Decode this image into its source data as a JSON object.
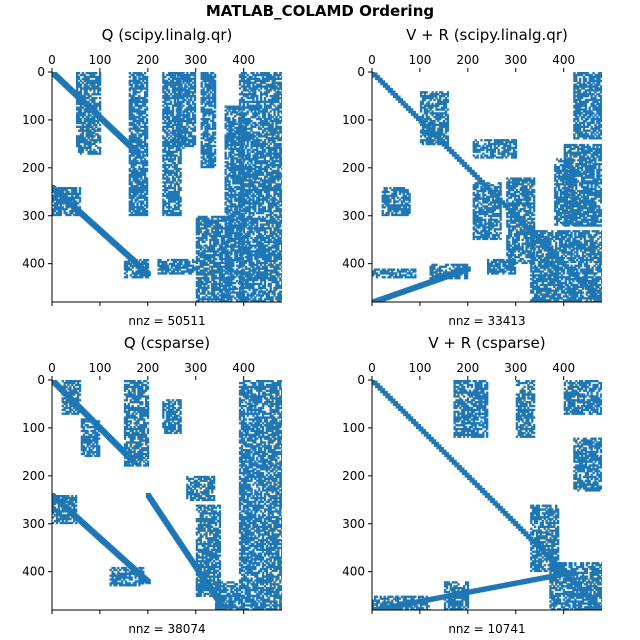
{
  "figure": {
    "title": "MATLAB_COLAMD Ordering"
  },
  "colors": {
    "marker": "#1f77b4",
    "background": "#ffffff",
    "axes": "#000000"
  },
  "chart_data": [
    {
      "type": "heatmap",
      "subtype": "sparsity-pattern",
      "title": "Q (scipy.linalg.qr)",
      "xlabel": "nnz = 50511",
      "nnz": 50511,
      "xaxis_position": "top",
      "x_ticks": [
        0,
        100,
        200,
        300,
        400
      ],
      "y_ticks": [
        0,
        100,
        200,
        300,
        400
      ],
      "xlim": [
        0,
        480
      ],
      "ylim": [
        480,
        0
      ],
      "blocks": [
        [
          0,
          0,
          480,
          480
        ],
        [
          50,
          0,
          100,
          170
        ],
        [
          160,
          0,
          200,
          300
        ],
        [
          230,
          0,
          270,
          300
        ],
        [
          260,
          0,
          300,
          160
        ],
        [
          310,
          0,
          340,
          200
        ],
        [
          390,
          0,
          480,
          480
        ],
        [
          360,
          70,
          400,
          480
        ],
        [
          150,
          390,
          200,
          430
        ],
        [
          220,
          390,
          300,
          420
        ],
        [
          0,
          240,
          60,
          300
        ],
        [
          300,
          300,
          370,
          480
        ]
      ],
      "diagonal": [
        [
          0,
          0,
          180,
          170
        ],
        [
          0,
          240,
          200,
          420
        ]
      ]
    },
    {
      "type": "heatmap",
      "subtype": "sparsity-pattern",
      "title": "V + R (scipy.linalg.qr)",
      "xlabel": "nnz = 33413",
      "nnz": 33413,
      "xaxis_position": "top",
      "x_ticks": [
        0,
        100,
        200,
        300,
        400
      ],
      "y_ticks": [
        0,
        100,
        200,
        300,
        400
      ],
      "xlim": [
        0,
        480
      ],
      "ylim": [
        480,
        0
      ],
      "blocks": [
        [
          0,
          0,
          480,
          480
        ],
        [
          20,
          240,
          80,
          300
        ],
        [
          210,
          230,
          270,
          350
        ],
        [
          280,
          220,
          340,
          400
        ],
        [
          330,
          330,
          480,
          480
        ],
        [
          400,
          150,
          480,
          320
        ],
        [
          420,
          0,
          480,
          140
        ],
        [
          0,
          410,
          90,
          430
        ],
        [
          120,
          400,
          200,
          430
        ],
        [
          240,
          390,
          300,
          420
        ],
        [
          100,
          40,
          160,
          150
        ],
        [
          210,
          140,
          300,
          180
        ],
        [
          380,
          180,
          420,
          320
        ]
      ],
      "diagonal": [
        [
          0,
          0,
          480,
          480
        ],
        [
          0,
          480,
          200,
          410
        ]
      ]
    },
    {
      "type": "heatmap",
      "subtype": "sparsity-pattern",
      "title": "Q (csparse)",
      "xlabel": "nnz = 38074",
      "nnz": 38074,
      "xaxis_position": "top",
      "x_ticks": [
        0,
        100,
        200,
        300,
        400
      ],
      "y_ticks": [
        0,
        100,
        200,
        300,
        400
      ],
      "xlim": [
        0,
        480
      ],
      "ylim": [
        480,
        0
      ],
      "blocks": [
        [
          0,
          0,
          480,
          480
        ],
        [
          390,
          0,
          480,
          480
        ],
        [
          20,
          0,
          60,
          70
        ],
        [
          150,
          0,
          200,
          180
        ],
        [
          230,
          40,
          270,
          110
        ],
        [
          280,
          200,
          340,
          250
        ],
        [
          300,
          260,
          350,
          450
        ],
        [
          120,
          390,
          190,
          430
        ],
        [
          0,
          240,
          50,
          300
        ],
        [
          60,
          80,
          100,
          160
        ],
        [
          340,
          420,
          390,
          480
        ]
      ],
      "diagonal": [
        [
          0,
          0,
          170,
          170
        ],
        [
          0,
          240,
          200,
          420
        ],
        [
          200,
          240,
          360,
          480
        ]
      ]
    },
    {
      "type": "heatmap",
      "subtype": "sparsity-pattern",
      "title": "V + R (csparse)",
      "xlabel": "nnz = 10741",
      "nnz": 10741,
      "xaxis_position": "top",
      "x_ticks": [
        0,
        100,
        200,
        300,
        400
      ],
      "y_ticks": [
        0,
        100,
        200,
        300,
        400
      ],
      "xlim": [
        0,
        480
      ],
      "ylim": [
        480,
        0
      ],
      "blocks": [
        [
          0,
          0,
          480,
          480
        ],
        [
          400,
          0,
          480,
          70
        ],
        [
          420,
          120,
          480,
          230
        ],
        [
          370,
          380,
          480,
          480
        ],
        [
          330,
          260,
          390,
          400
        ],
        [
          170,
          0,
          240,
          120
        ],
        [
          300,
          0,
          340,
          120
        ],
        [
          0,
          450,
          120,
          480
        ],
        [
          150,
          420,
          200,
          480
        ]
      ],
      "diagonal": [
        [
          0,
          0,
          480,
          480
        ],
        [
          0,
          480,
          420,
          400
        ]
      ]
    }
  ]
}
